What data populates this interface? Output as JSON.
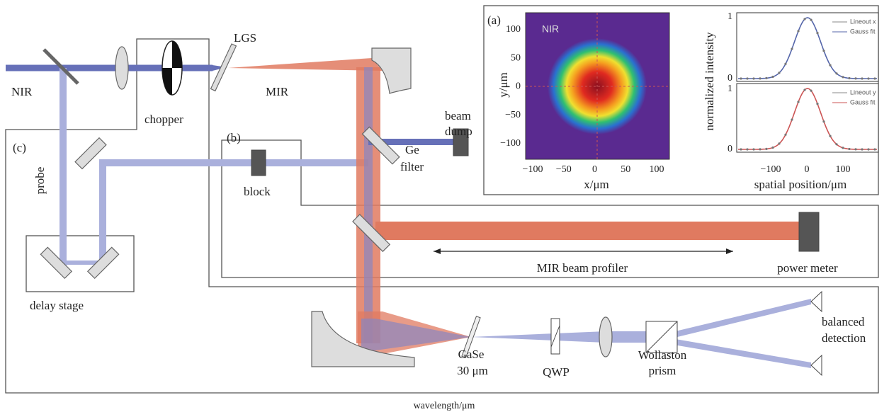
{
  "labels": {
    "nir": "NIR",
    "lgs": "LGS",
    "mir": "MIR",
    "chopper": "chopper",
    "beam": "beam",
    "dump": "dump",
    "ge": "Ge",
    "filter": "filter",
    "panel_b": "(b)",
    "panel_c": "(c)",
    "probe": "probe",
    "block": "block",
    "delay_stage": "delay stage",
    "mir_beam_profiler": "MIR beam profiler",
    "power_meter": "power meter",
    "gase": "GaSe",
    "thickness": "30 μm",
    "qwp": "QWP",
    "wollaston": "Wollaston",
    "prism": "prism",
    "balanced": "balanced",
    "detection": "detection",
    "caption": "wavelength/μm"
  },
  "inset": {
    "panel": "(a)",
    "image_tag": "NIR",
    "image_x_label": "x/μm",
    "image_y_label": "y/μm",
    "image_x_ticks": [
      "−100",
      "−50",
      "0",
      "50",
      "100"
    ],
    "image_y_ticks": [
      "100",
      "50",
      "0",
      "−50",
      "−100"
    ],
    "profile_y_label": "normalized intensity",
    "profile_x_label": "spatial position/μm",
    "profile_x_ticks": [
      "−100",
      "0",
      "100"
    ],
    "profile_y_ticks_top": [
      "1",
      "0"
    ],
    "profile_y_ticks_bottom": [
      "1",
      "0"
    ],
    "legend_top": [
      "Lineout x",
      "Gauss fit"
    ],
    "legend_bottom": [
      "Lineout y",
      "Gauss fit"
    ]
  }
}
